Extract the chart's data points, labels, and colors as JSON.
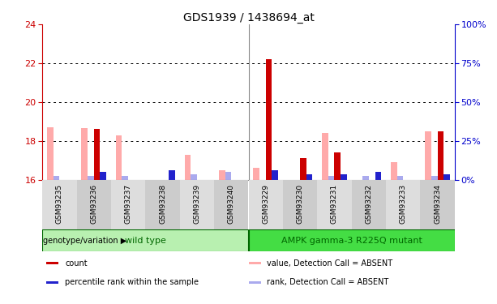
{
  "title": "GDS1939 / 1438694_at",
  "samples": [
    "GSM93235",
    "GSM93236",
    "GSM93237",
    "GSM93238",
    "GSM93239",
    "GSM93240",
    "GSM93229",
    "GSM93230",
    "GSM93231",
    "GSM93232",
    "GSM93233",
    "GSM93234"
  ],
  "groups": [
    "wild type",
    "wild type",
    "wild type",
    "wild type",
    "wild type",
    "wild type",
    "AMPK gamma-3 R225Q mutant",
    "AMPK gamma-3 R225Q mutant",
    "AMPK gamma-3 R225Q mutant",
    "AMPK gamma-3 R225Q mutant",
    "AMPK gamma-3 R225Q mutant",
    "AMPK gamma-3 R225Q mutant"
  ],
  "red_bars": [
    16.0,
    18.6,
    16.0,
    16.0,
    16.0,
    16.0,
    22.2,
    17.1,
    17.4,
    16.0,
    16.0,
    18.5
  ],
  "blue_bars": [
    16.0,
    16.4,
    16.0,
    16.5,
    16.0,
    16.0,
    16.5,
    16.3,
    16.3,
    16.4,
    16.0,
    16.3
  ],
  "pink_bars": [
    18.7,
    18.65,
    18.3,
    16.0,
    17.3,
    16.5,
    16.6,
    16.0,
    18.4,
    16.0,
    16.9,
    18.5
  ],
  "lightblue_bars": [
    16.2,
    16.2,
    16.2,
    16.0,
    16.3,
    16.4,
    16.0,
    16.0,
    16.2,
    16.2,
    16.2,
    16.2
  ],
  "ymin": 16,
  "ymax": 24,
  "yticks_left": [
    16,
    18,
    20,
    22,
    24
  ],
  "yticks_right": [
    0,
    25,
    50,
    75,
    100
  ],
  "bar_width": 0.18,
  "bar_color_red": "#cc0000",
  "bar_color_blue": "#2222cc",
  "bar_color_pink": "#ffaaaa",
  "bar_color_lightblue": "#aaaaee",
  "wt_color": "#b8f0b0",
  "mut_color": "#44dd44",
  "group_label_color": "#006600",
  "axis_color_left": "#cc0000",
  "axis_color_right": "#0000cc",
  "bg_color": "#ffffff",
  "legend_items": [
    {
      "label": "count",
      "color": "#cc0000"
    },
    {
      "label": "percentile rank within the sample",
      "color": "#2222cc"
    },
    {
      "label": "value, Detection Call = ABSENT",
      "color": "#ffaaaa"
    },
    {
      "label": "rank, Detection Call = ABSENT",
      "color": "#aaaaee"
    }
  ]
}
